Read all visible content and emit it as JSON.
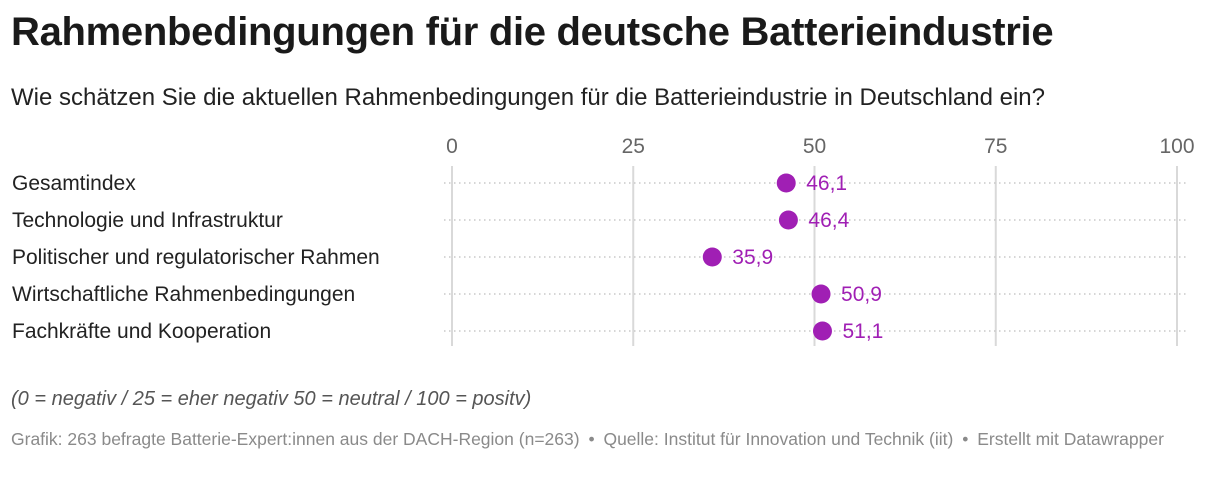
{
  "header": {
    "title": "Rahmenbedingungen für die deutsche Batterieindustrie",
    "subtitle": "Wie schätzen Sie die aktuellen Rahmenbedingungen für die Batterieindustrie in Deutschland ein?"
  },
  "chart_data": {
    "type": "scatter",
    "orientation": "horizontal-dot",
    "categories": [
      "Gesamtindex",
      "Technologie und Infrastruktur",
      "Politischer und regulatorischer Rahmen",
      "Wirtschaftliche Rahmenbedingungen",
      "Fachkräfte und Kooperation"
    ],
    "values": [
      46.1,
      46.4,
      35.9,
      50.9,
      51.1
    ],
    "value_labels": [
      "46,1",
      "46,4",
      "35,9",
      "50,9",
      "51,1"
    ],
    "xlim": [
      0,
      100
    ],
    "xticks": [
      0,
      25,
      50,
      75,
      100
    ],
    "xtick_labels": [
      "0",
      "25",
      "50",
      "75",
      "100"
    ],
    "axis_position": "top",
    "grid": true,
    "colors": {
      "dot": "#a01fb4",
      "grid": "#d9d9d9",
      "row_guide": "#c8c8c8",
      "tick_text": "#666666"
    }
  },
  "notes": {
    "scale_note": "(0 = negativ / 25 = eher negativ 50 = neutral / 100 = positv)"
  },
  "footer": {
    "source_text": "Grafik: 263 befragte Batterie-Expert:innen aus der DACH-Region (n=263)",
    "separator": "•",
    "quelle_text": "Quelle: Institut für Innovation und Technik (iit)",
    "credit_text": "Erstellt mit Datawrapper"
  }
}
